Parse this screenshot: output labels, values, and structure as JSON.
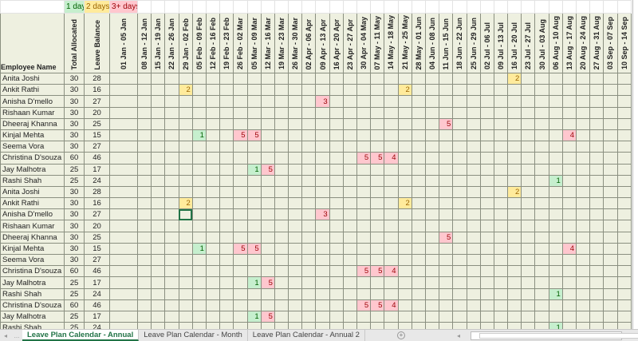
{
  "legend": {
    "one_day": "1 day",
    "two_days": "2 days",
    "three_plus": "3+ days"
  },
  "colors": {
    "one_day": "#c6efce",
    "two_days": "#ffeb9c",
    "three_plus": "#ffc7ce",
    "active_tab": "#217346"
  },
  "headers": {
    "name": "Employee Name",
    "total": "Total Allocated",
    "balance": "Leave Balance"
  },
  "weeks": [
    "01 Jan - 05 Jan",
    "08 Jan - 12 Jan",
    "15 Jan - 19 Jan",
    "22 Jan - 26 Jan",
    "29 Jan - 02 Feb",
    "05 Feb - 09 Feb",
    "12 Feb - 16 Feb",
    "19 Feb - 23 Feb",
    "26 Feb - 02 Mar",
    "05 Mar - 09 Mar",
    "12 Mar - 16 Mar",
    "19 Mar - 23 Mar",
    "26 Mar - 30 Mar",
    "02 Apr - 06 Apr",
    "09 Apr - 13 Apr",
    "16 Apr - 20 Apr",
    "23 Apr - 27 Apr",
    "30 Apr - 04 May",
    "07 May - 11 May",
    "14 May - 18 May",
    "21 May - 25 May",
    "28 May - 01 Jun",
    "04 Jun - 08 Jun",
    "11 Jun - 15 Jun",
    "18 Jun - 22 Jun",
    "25 Jun - 29 Jun",
    "02 Jul - 06 Jul",
    "09 Jul - 13 Jul",
    "16 Jul - 20 Jul",
    "23 Jul - 27 Jul",
    "30 Jul - 03 Aug",
    "06 Aug - 10 Aug",
    "13 Aug - 17 Aug",
    "20 Aug - 24 Aug",
    "27 Aug - 31 Aug",
    "03 Sep - 07 Sep",
    "10 Sep - 14 Sep"
  ],
  "rows": [
    {
      "name": "Anita Joshi",
      "total": "30",
      "balance": "28",
      "leave": {
        "28": 2
      }
    },
    {
      "name": "Ankit Rathi",
      "total": "30",
      "balance": "16",
      "leave": {
        "4": 2,
        "20": 2
      }
    },
    {
      "name": "Anisha D'mello",
      "total": "30",
      "balance": "27",
      "leave": {
        "14": 3
      }
    },
    {
      "name": "Rishaan Kumar",
      "total": "30",
      "balance": "20",
      "leave": {}
    },
    {
      "name": "Dheeraj Khanna",
      "total": "30",
      "balance": "25",
      "leave": {
        "23": 5
      }
    },
    {
      "name": "Kinjal Mehta",
      "total": "30",
      "balance": "15",
      "leave": {
        "5": 1,
        "8": 5,
        "9": 5,
        "32": 4
      }
    },
    {
      "name": "Seema Vora",
      "total": "30",
      "balance": "27",
      "leave": {}
    },
    {
      "name": "Christina D'souza",
      "total": "60",
      "balance": "46",
      "leave": {
        "17": 5,
        "18": 5,
        "19": 4
      }
    },
    {
      "name": "Jay Malhotra",
      "total": "25",
      "balance": "17",
      "leave": {
        "9": 1,
        "10": 5
      }
    },
    {
      "name": "Rashi Shah",
      "total": "25",
      "balance": "24",
      "leave": {
        "31": 1
      }
    },
    {
      "name": "Anita Joshi",
      "total": "30",
      "balance": "28",
      "leave": {
        "28": 2
      }
    },
    {
      "name": "Ankit Rathi",
      "total": "30",
      "balance": "16",
      "leave": {
        "4": 2,
        "20": 2
      }
    },
    {
      "name": "Anisha D'mello",
      "total": "30",
      "balance": "27",
      "leave": {
        "14": 3
      }
    },
    {
      "name": "Rishaan Kumar",
      "total": "30",
      "balance": "20",
      "leave": {}
    },
    {
      "name": "Dheeraj Khanna",
      "total": "30",
      "balance": "25",
      "leave": {
        "23": 5
      }
    },
    {
      "name": "Kinjal Mehta",
      "total": "30",
      "balance": "15",
      "leave": {
        "5": 1,
        "8": 5,
        "9": 5,
        "32": 4
      }
    },
    {
      "name": "Seema Vora",
      "total": "30",
      "balance": "27",
      "leave": {}
    },
    {
      "name": "Christina D'souza",
      "total": "60",
      "balance": "46",
      "leave": {
        "17": 5,
        "18": 5,
        "19": 4
      }
    },
    {
      "name": "Jay Malhotra",
      "total": "25",
      "balance": "17",
      "leave": {
        "9": 1,
        "10": 5
      }
    },
    {
      "name": "Rashi Shah",
      "total": "25",
      "balance": "24",
      "leave": {
        "31": 1
      }
    },
    {
      "name": "Christina D'souza",
      "total": "60",
      "balance": "46",
      "leave": {
        "17": 5,
        "18": 5,
        "19": 4
      }
    },
    {
      "name": "Jay Malhotra",
      "total": "25",
      "balance": "17",
      "leave": {
        "9": 1,
        "10": 5
      }
    },
    {
      "name": "Rashi Shah",
      "total": "25",
      "balance": "24",
      "leave": {
        "31": 1
      }
    }
  ],
  "selected_cell": {
    "row": 12,
    "week": 4
  },
  "tabs": {
    "more": "...",
    "items": [
      "Leave Plan Calendar - Annual",
      "Leave Plan Calendar - Month",
      "Leave Plan Calendar - Annual 2"
    ],
    "active": 0
  }
}
